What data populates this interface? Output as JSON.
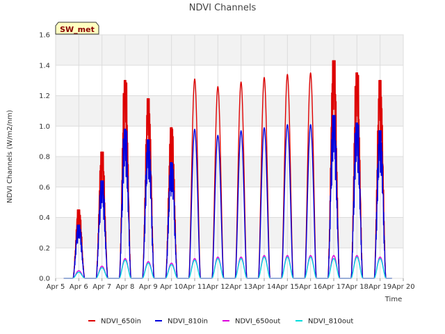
{
  "chart_data": {
    "type": "line",
    "title": "NDVI Channels",
    "xlabel": "Time",
    "ylabel": "NDVI Channels (W/m2/nm)",
    "badge": "SW_met",
    "ylim": [
      0.0,
      1.6
    ],
    "yticks": [
      0.0,
      0.2,
      0.4,
      0.6,
      0.8,
      1.0,
      1.2,
      1.4,
      1.6
    ],
    "ytick_labels": [
      "0.0",
      "0.2",
      "0.4",
      "0.6",
      "0.8",
      "1.0",
      "1.2",
      "1.4",
      "1.6"
    ],
    "xlim": [
      5,
      20
    ],
    "xticks": [
      5,
      6,
      7,
      8,
      9,
      10,
      11,
      12,
      13,
      14,
      15,
      16,
      17,
      18,
      19,
      20
    ],
    "xtick_labels": [
      "Apr 5",
      "Apr 6",
      "Apr 7",
      "Apr 8",
      "Apr 9",
      "Apr 10",
      "Apr 11",
      "Apr 12",
      "Apr 13",
      "Apr 14",
      "Apr 15",
      "Apr 16",
      "Apr 17",
      "Apr 18",
      "Apr 19",
      "Apr 20"
    ],
    "daily_peaks": {
      "days": [
        6,
        7,
        8,
        9,
        10,
        11,
        12,
        13,
        14,
        15,
        16,
        17,
        18,
        19
      ],
      "series": [
        {
          "name": "NDVI_650in",
          "color": "#dd0000",
          "values": [
            0.45,
            0.83,
            1.3,
            1.18,
            0.99,
            1.31,
            1.26,
            1.29,
            1.32,
            1.34,
            1.35,
            1.43,
            1.35,
            1.3
          ]
        },
        {
          "name": "NDVI_810in",
          "color": "#0000dd",
          "values": [
            0.35,
            0.64,
            0.98,
            0.91,
            0.76,
            0.98,
            0.94,
            0.97,
            0.99,
            1.01,
            1.01,
            1.07,
            1.02,
            0.97
          ]
        },
        {
          "name": "NDVI_650out",
          "color": "#dd00dd",
          "values": [
            0.05,
            0.08,
            0.13,
            0.11,
            0.1,
            0.13,
            0.14,
            0.14,
            0.15,
            0.15,
            0.15,
            0.15,
            0.15,
            0.14
          ]
        },
        {
          "name": "NDVI_810out",
          "color": "#00dddd",
          "values": [
            0.04,
            0.07,
            0.12,
            0.1,
            0.09,
            0.12,
            0.13,
            0.13,
            0.14,
            0.14,
            0.14,
            0.13,
            0.14,
            0.13
          ]
        }
      ]
    },
    "legend": [
      "NDVI_650in",
      "NDVI_810in",
      "NDVI_650out",
      "NDVI_810out"
    ],
    "legend_position": "bottom-center",
    "grid": true
  }
}
